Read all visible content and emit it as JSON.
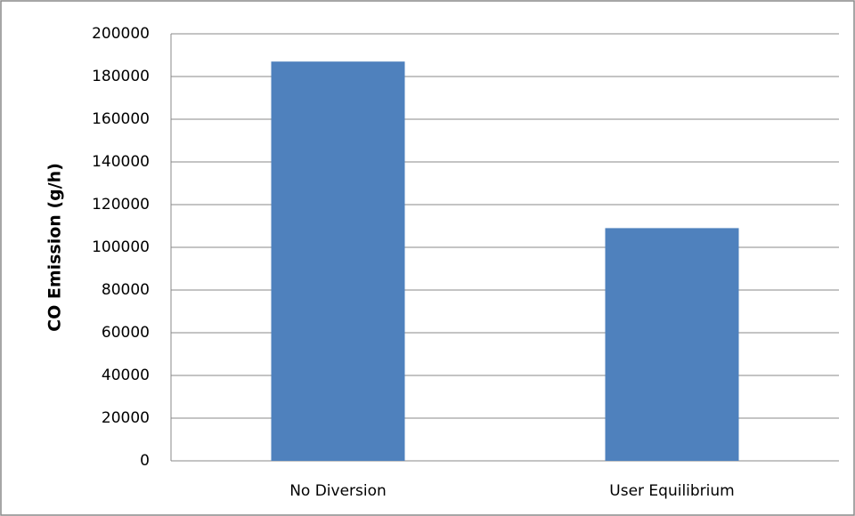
{
  "chart_data": {
    "type": "bar",
    "y_label": "CO Emission (g/h)",
    "categories": [
      "No Diversion",
      "User Equilibrium"
    ],
    "values": [
      187000,
      109000
    ],
    "color": "#4f81bd",
    "ylim": [
      0,
      200000
    ],
    "yticks": [
      0,
      20000,
      40000,
      60000,
      80000,
      100000,
      120000,
      140000,
      160000,
      180000,
      200000
    ],
    "grid": true
  }
}
